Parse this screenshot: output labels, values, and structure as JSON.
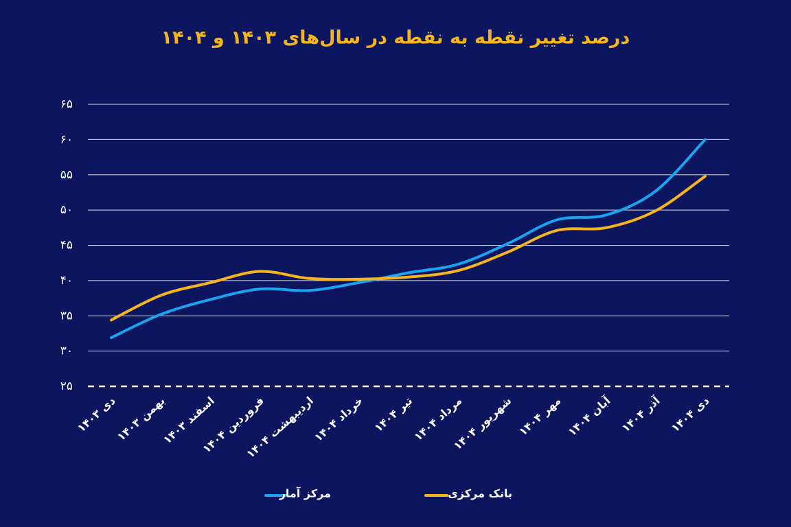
{
  "chart_data": {
    "type": "line",
    "title": "درصد تغییر نقطه به نقطه در سال‌های ۱۴۰۳ و ۱۴۰۴",
    "categories": [
      "دی ۱۴۰۳",
      "بهمن ۱۴۰۳",
      "اسفند ۱۴۰۳",
      "فروردین ۱۴۰۴",
      "اردیبهشت ۱۴۰۴",
      "خرداد ۱۴۰۴",
      "تیر ۱۴۰۴",
      "مرداد ۱۴۰۴",
      "شهریور ۱۴۰۴",
      "مهر ۱۴۰۴",
      "آبان ۱۴۰۴",
      "آذر ۱۴۰۴",
      "دی ۱۴۰۴"
    ],
    "series": [
      {
        "name": "مرکز آمار",
        "color": "#1aa3f0",
        "values": [
          31.9,
          35.2,
          37.3,
          38.8,
          38.6,
          39.7,
          41.1,
          42.3,
          45.2,
          48.6,
          49.3,
          52.7,
          60
        ]
      },
      {
        "name": "بانک مرکزی",
        "color": "#f6b51c",
        "values": [
          34.4,
          37.9,
          39.7,
          41.3,
          40.3,
          40.2,
          40.5,
          41.4,
          44,
          47.1,
          47.5,
          49.9,
          54.8
        ]
      }
    ],
    "ylim": [
      25,
      65
    ],
    "yticks": [
      {
        "value": 25,
        "label": "۲۵"
      },
      {
        "value": 30,
        "label": "۳۰"
      },
      {
        "value": 35,
        "label": "۳۵"
      },
      {
        "value": 40,
        "label": "۴۰"
      },
      {
        "value": 45,
        "label": "۴۵"
      },
      {
        "value": 50,
        "label": "۵۰"
      },
      {
        "value": 55,
        "label": "۵۵"
      },
      {
        "value": 60,
        "label": "۶۰"
      },
      {
        "value": 65,
        "label": "۶۵"
      }
    ],
    "grid": true
  }
}
